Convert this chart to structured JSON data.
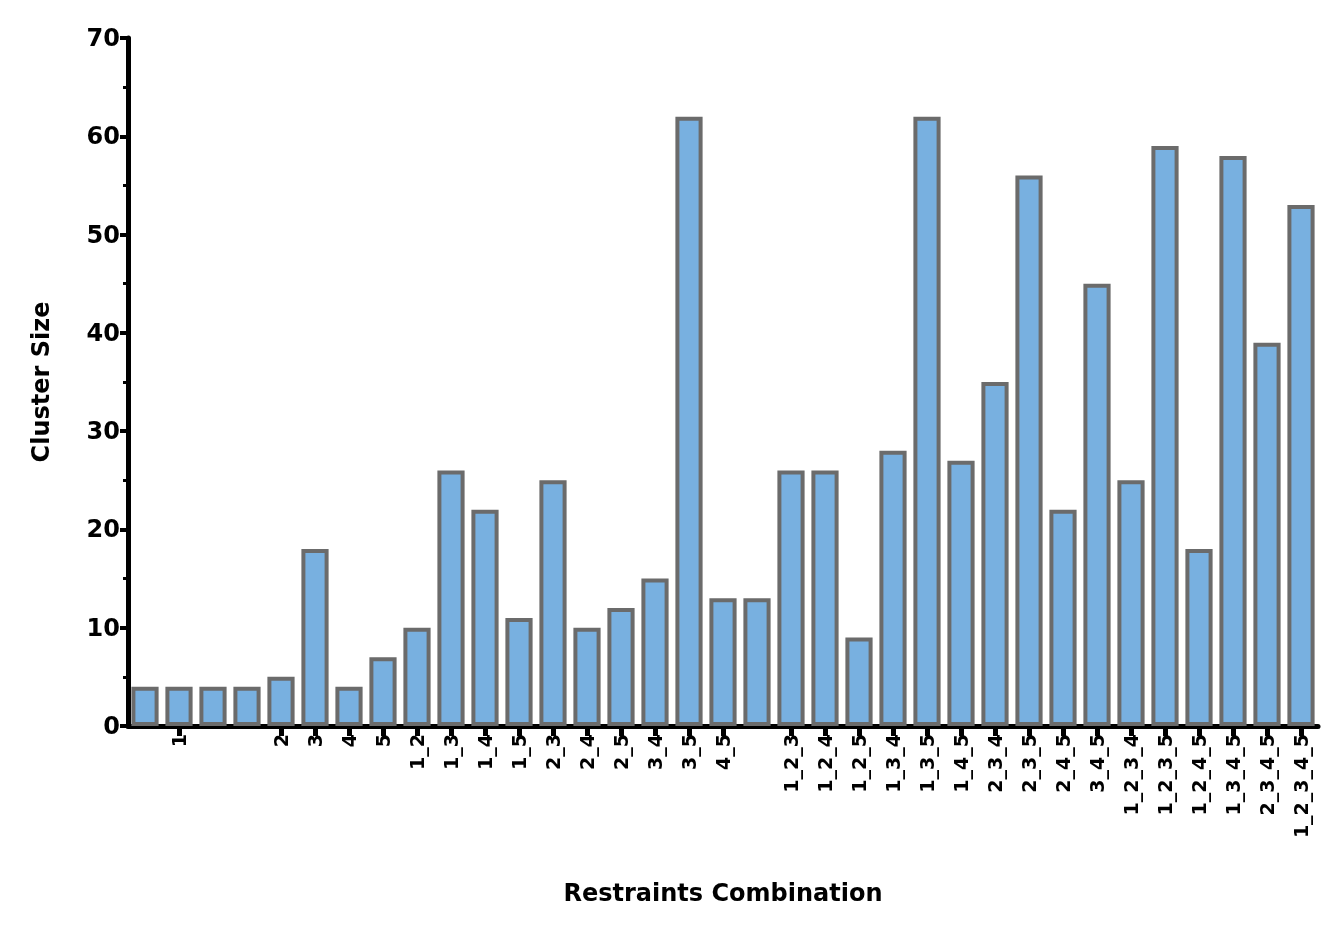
{
  "chart_data": {
    "type": "bar",
    "xlabel": "Restraints Combination",
    "ylabel": "Cluster Size",
    "categories": [
      null,
      "1",
      null,
      null,
      "2",
      "3",
      "4",
      "5",
      "1_2",
      "1_3",
      "1_4",
      "1_5",
      "2_3",
      "2_4",
      "2_5",
      "3_4",
      "3_5",
      "4_5",
      null,
      "1_2_3",
      "1_2_4",
      "1_2_5",
      "1_3_4",
      "1_3_5",
      "1_4_5",
      "2_3_4",
      "2_3_5",
      "2_4_5",
      "3_4_5",
      "1_2_3_4",
      "1_2_3_5",
      "1_2_4_5",
      "1_3_4_5",
      "2_3_4_5",
      "1_2_3_4_5"
    ],
    "values": [
      4,
      4,
      4,
      4,
      5,
      18,
      4,
      7,
      10,
      26,
      22,
      11,
      25,
      10,
      12,
      15,
      62,
      13,
      13,
      26,
      26,
      9,
      28,
      62,
      27,
      35,
      56,
      22,
      45,
      25,
      59,
      18,
      58,
      39,
      53
    ],
    "color": "#78b0e0",
    "ylim": [
      0,
      70
    ],
    "yticks": [
      0,
      10,
      20,
      30,
      40,
      50,
      60,
      70
    ],
    "grid": false
  }
}
